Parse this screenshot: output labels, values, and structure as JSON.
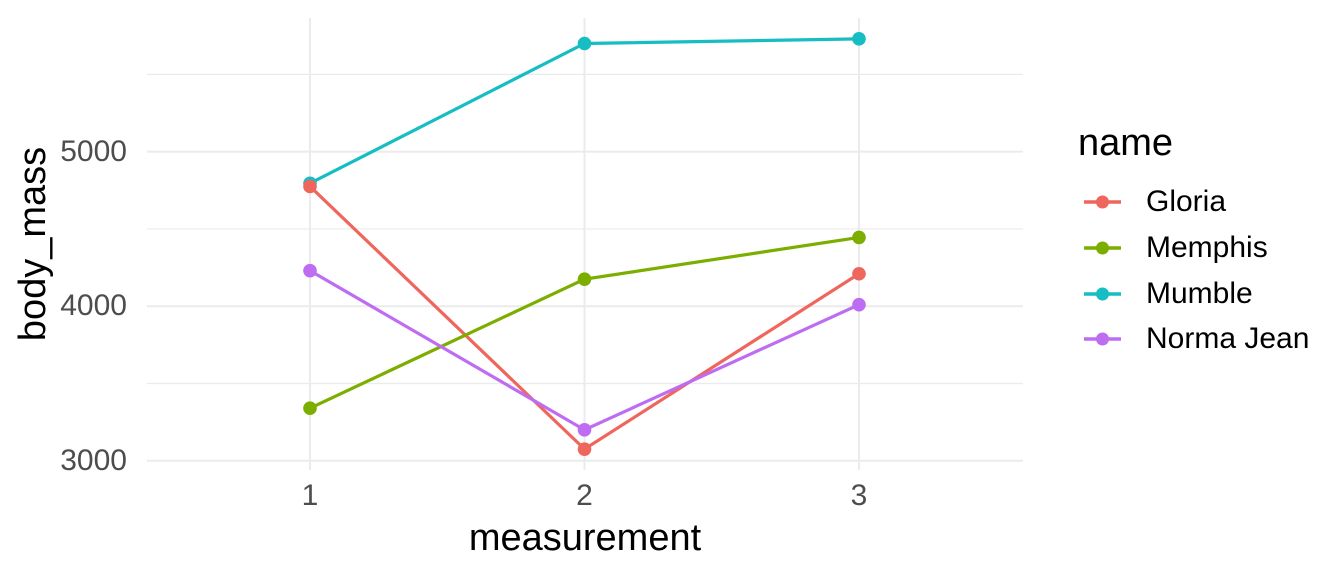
{
  "chart_data": {
    "type": "line",
    "x": [
      1,
      2,
      3
    ],
    "x_tick_labels": [
      "1",
      "2",
      "3"
    ],
    "xlabel": "measurement",
    "ylabel": "body_mass",
    "yticks": [
      3000,
      4000,
      5000
    ],
    "ytick_labels": [
      "3000",
      "4000",
      "5000"
    ],
    "yticks_minor": [
      3500,
      4500,
      5500
    ],
    "ylim": [
      2940,
      5865
    ],
    "series": [
      {
        "name": "Gloria",
        "color": "#EF665C",
        "values": [
          4775,
          3075,
          4210
        ]
      },
      {
        "name": "Memphis",
        "color": "#7CAE00",
        "values": [
          3340,
          4175,
          4445
        ]
      },
      {
        "name": "Mumble",
        "color": "#16BDC2",
        "values": [
          4795,
          5700,
          5730
        ]
      },
      {
        "name": "Norma Jean",
        "color": "#BE6CF2",
        "values": [
          4230,
          3200,
          4010
        ]
      }
    ],
    "legend_title": "name",
    "legend_position": "right",
    "grid": true,
    "style": {
      "background_color": "#FFFFFF",
      "grid_color": "#EBEBEB",
      "tick_label_color": "#4D4D4D",
      "axis_title_color": "#000000",
      "legend_text_color": "#000000"
    }
  }
}
